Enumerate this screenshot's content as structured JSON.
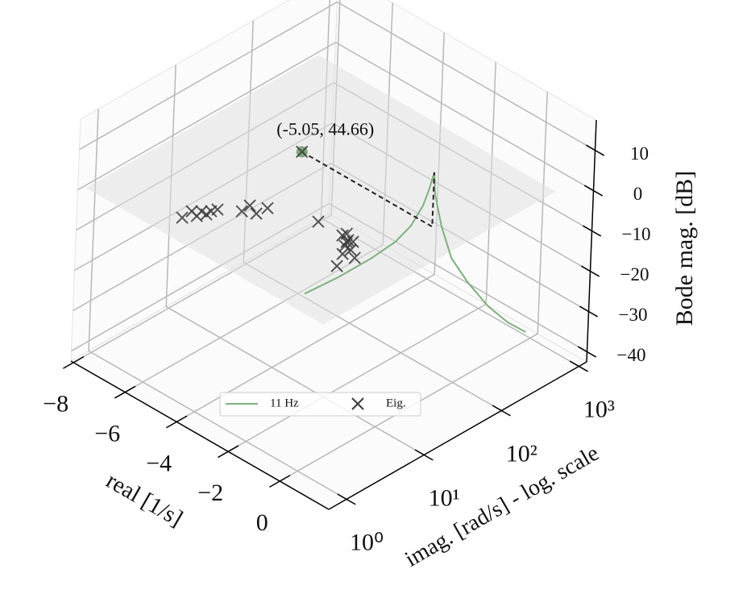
{
  "chart_data": {
    "type": "scatter3d",
    "xlabel": "real [1/s]",
    "ylabel": "imag. [rad/s] - log. scale",
    "zlabel": "Bode mag. [dB]",
    "xlim": [
      -8.1,
      1.9
    ],
    "ylim": [
      0.59,
      1259
    ],
    "zlim": [
      -42.5,
      17.5
    ],
    "ylog": true,
    "grid": true,
    "xticks": [
      {
        "value": -8,
        "label": "−8"
      },
      {
        "value": -6,
        "label": "−6"
      },
      {
        "value": -4,
        "label": "−4"
      },
      {
        "value": -2,
        "label": "−2"
      },
      0
    ],
    "yticks": [
      {
        "value": 1,
        "label": "10⁰"
      },
      {
        "value": 10,
        "label": "10¹"
      },
      {
        "value": 100,
        "label": "10²"
      },
      {
        "value": 1000,
        "label": "10³"
      }
    ],
    "zticks": [
      10,
      0,
      {
        "value": -10,
        "label": "−10"
      },
      {
        "value": -20,
        "label": "−20"
      },
      {
        "value": -30,
        "label": "−30"
      },
      {
        "value": -40,
        "label": "−40"
      }
    ],
    "surface": {
      "z": 0,
      "xlim": [
        -8,
        1.2
      ],
      "ylim": [
        0.7,
        700
      ],
      "color": "#e0e0e0"
    },
    "series": [
      {
        "name": "11 Hz",
        "kind": "line",
        "color": "#7fb07f",
        "x": 0,
        "y": [
          1,
          2.75,
          7.2,
          14.8,
          23.4,
          33,
          38.9,
          44.66,
          46.8,
          59,
          83,
          140,
          269,
          501,
          870
        ],
        "z": [
          1.5,
          0.8,
          0.8,
          1.5,
          3.3,
          6.7,
          9.9,
          13.5,
          8,
          -1.1,
          -10.7,
          -19.2,
          -28.3,
          -35.3,
          -40.3
        ]
      },
      {
        "name": "Eig.",
        "kind": "scatter",
        "color": "#3a3a3a",
        "x": [
          -5.14,
          -5.17,
          -4.98,
          -4.8,
          -4.91,
          -4.78,
          -4.73,
          -4.2,
          -4.24,
          -3.84,
          -3.81,
          -2.37,
          -1.14,
          -1.44,
          -1.17,
          -0.79,
          -0.44,
          -0.81,
          -0.51,
          -1.04,
          -1.02,
          -1.41,
          -5.05
        ],
        "y": [
          1.36,
          1.85,
          2.14,
          2.47,
          1.76,
          2.12,
          2.84,
          3.9,
          5.1,
          4.55,
          6.2,
          9.3,
          8.4,
          9.34,
          8.97,
          7.25,
          6.25,
          5.79,
          3.89,
          7.4,
          9.27,
          10.4,
          44.66
        ]
      }
    ],
    "annotation": {
      "text": "(-5.05, 44.66)",
      "x": -5.05,
      "y": 44.66,
      "color": "#6a9a6a"
    },
    "legend": "lower center"
  }
}
